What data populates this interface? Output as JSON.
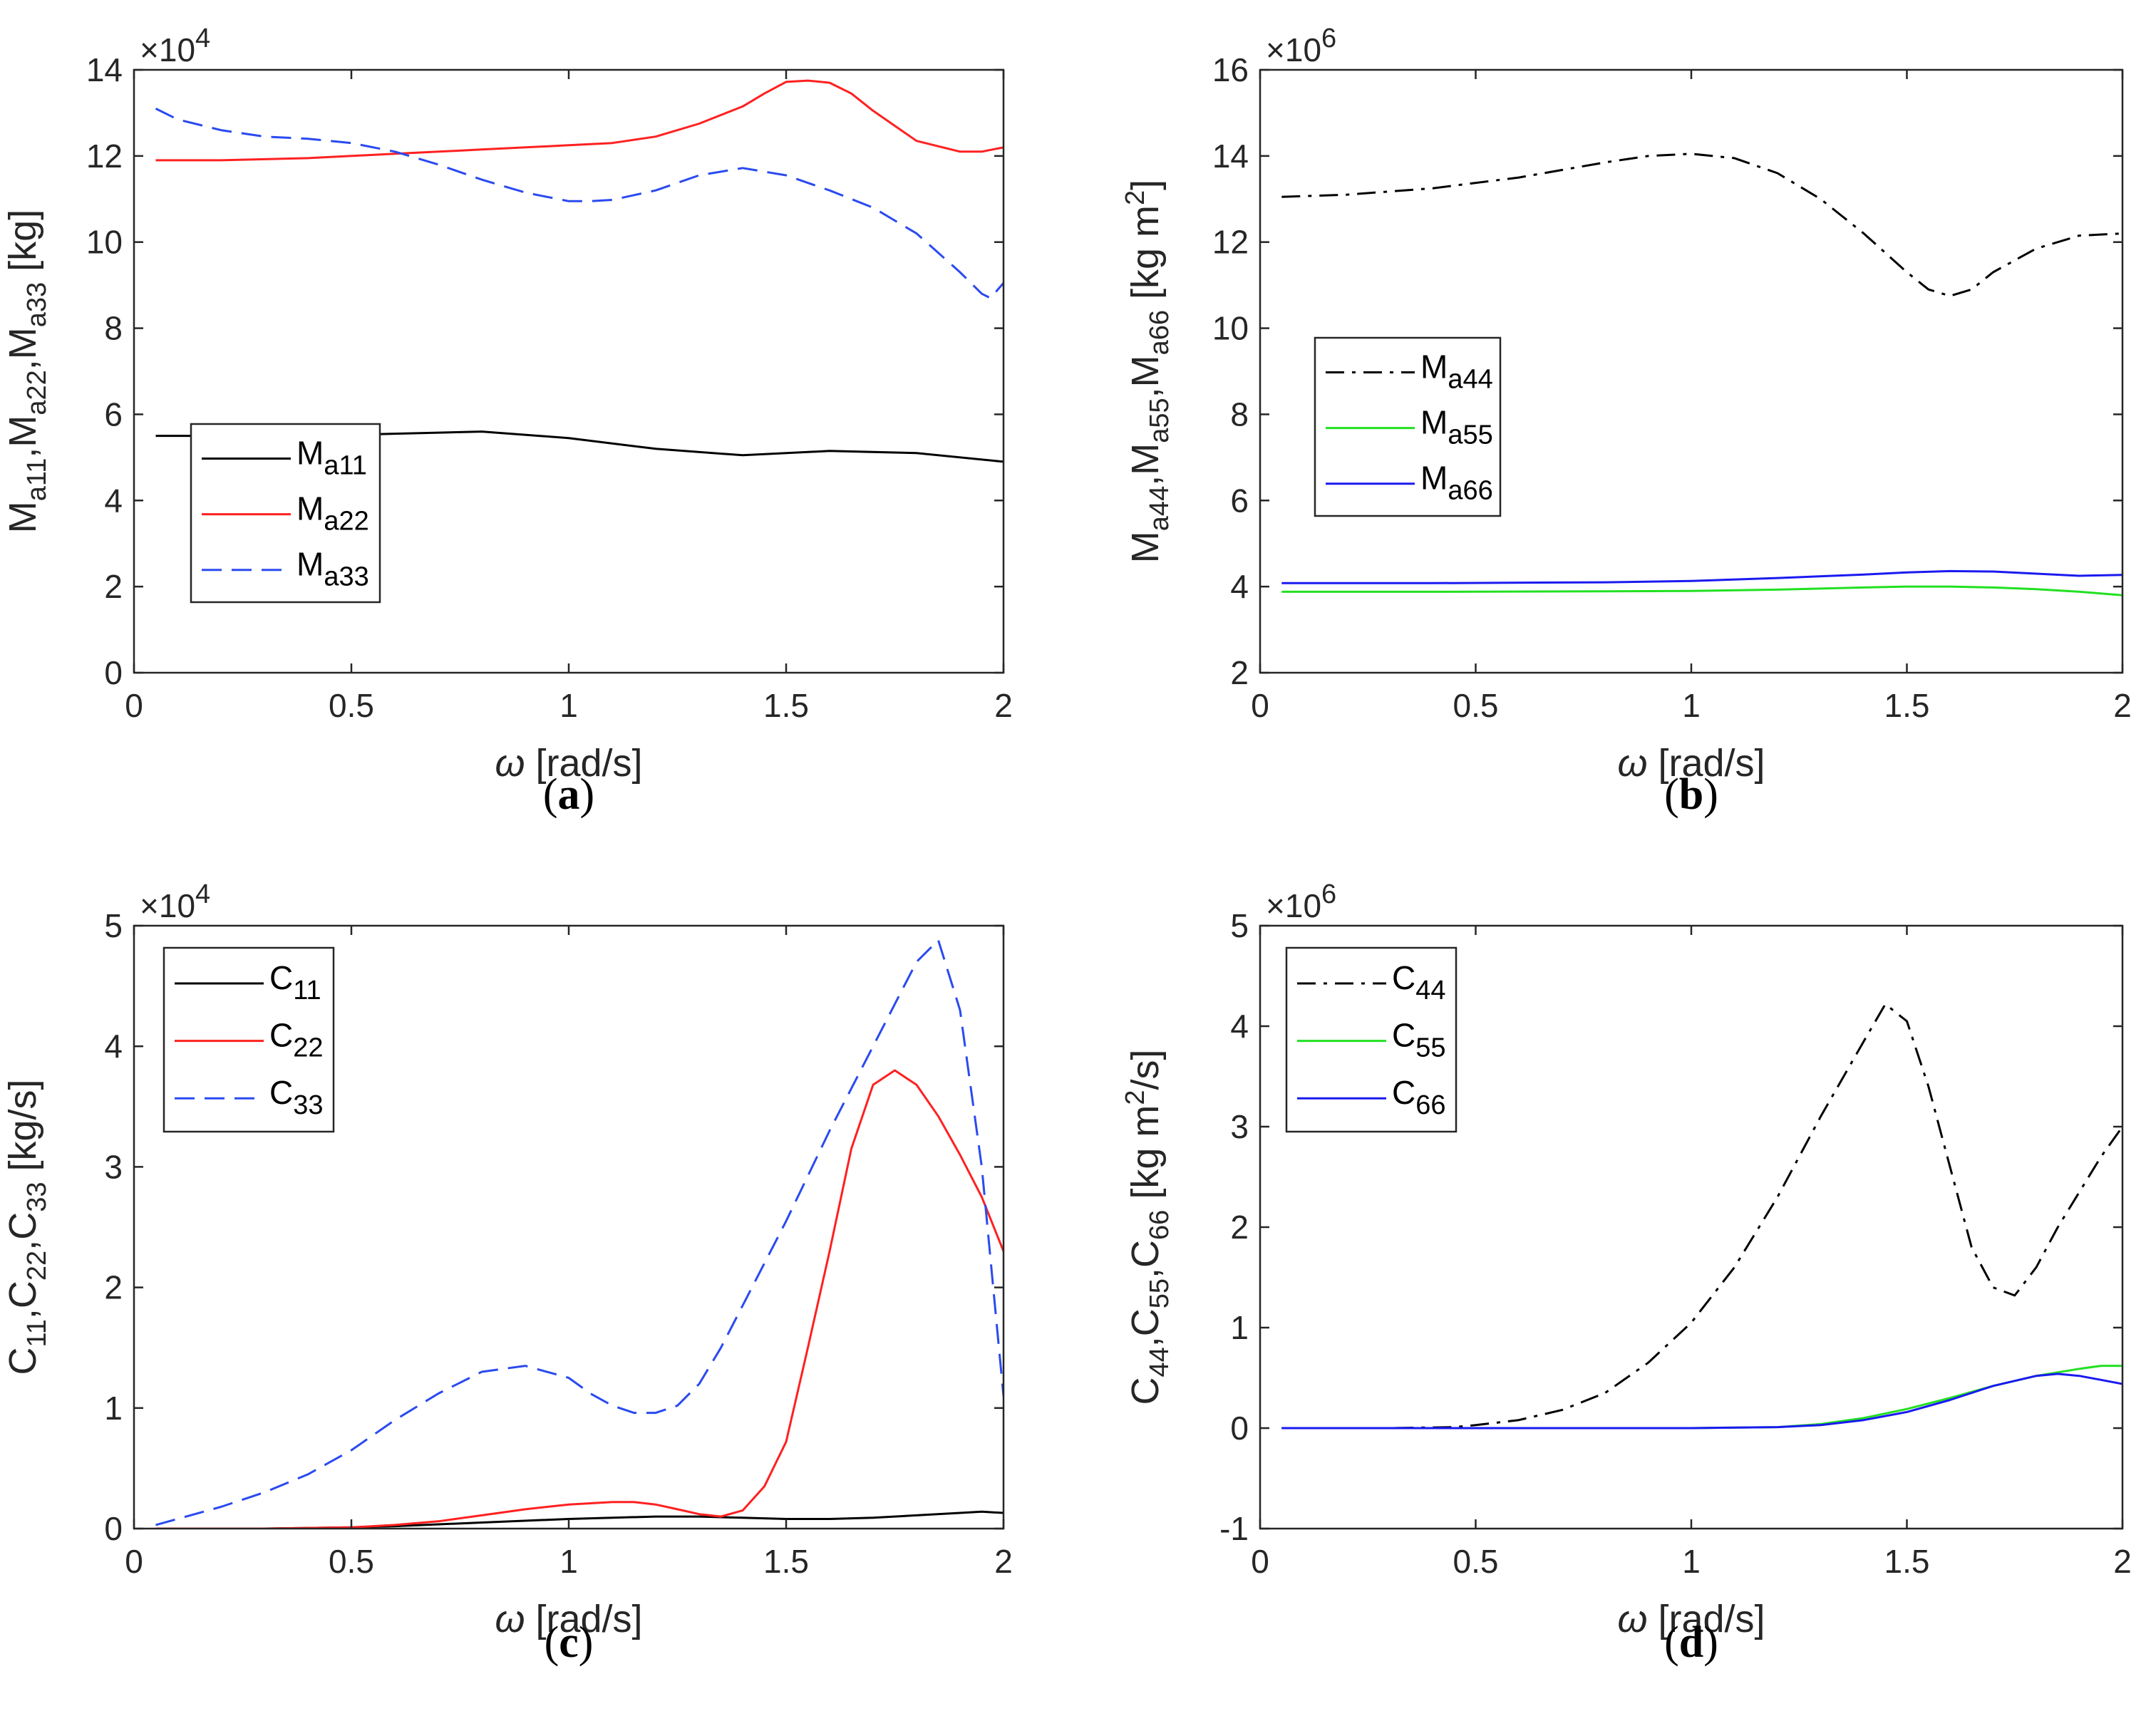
{
  "chart_data": [
    {
      "type": "line",
      "panel": "a",
      "panel_label": "a",
      "xlabel": "[rad/s]",
      "xlabel_symbol": "ω",
      "ylabel": "M_{a11},M_{a22},M_{a33} [kg]",
      "ylabel_parts": [
        "M",
        "a11",
        ",M",
        "a22",
        ",M",
        "a33",
        " [kg]"
      ],
      "exponent_label": "×10",
      "exponent": "4",
      "xlim": [
        0,
        2
      ],
      "ylim": [
        0,
        14
      ],
      "xticks": [
        0,
        0.5,
        1,
        1.5,
        2
      ],
      "xtick_labels": [
        "0",
        "0.5",
        "1",
        "1.5",
        "2"
      ],
      "yticks": [
        0,
        2,
        4,
        6,
        8,
        10,
        12,
        14
      ],
      "ytick_labels": [
        "0",
        "2",
        "4",
        "6",
        "8",
        "10",
        "12",
        "14"
      ],
      "legend_position": "lower-left",
      "series": [
        {
          "name": "M",
          "sub": "a11",
          "color": "#000000",
          "dash": "solid",
          "x": [
            0.05,
            0.2,
            0.4,
            0.6,
            0.8,
            1.0,
            1.2,
            1.4,
            1.6,
            1.8,
            2.0
          ],
          "y": [
            5.5,
            5.5,
            5.5,
            5.55,
            5.6,
            5.45,
            5.2,
            5.05,
            5.15,
            5.1,
            4.9
          ]
        },
        {
          "name": "M",
          "sub": "a22",
          "color": "#ff2020",
          "dash": "solid",
          "x": [
            0.05,
            0.2,
            0.4,
            0.6,
            0.8,
            1.0,
            1.1,
            1.2,
            1.3,
            1.4,
            1.45,
            1.5,
            1.55,
            1.6,
            1.65,
            1.7,
            1.8,
            1.9,
            1.95,
            2.0
          ],
          "y": [
            11.9,
            11.9,
            11.95,
            12.05,
            12.15,
            12.25,
            12.3,
            12.45,
            12.75,
            13.15,
            13.45,
            13.72,
            13.75,
            13.7,
            13.45,
            13.05,
            12.35,
            12.1,
            12.1,
            12.2
          ]
        },
        {
          "name": "M",
          "sub": "a33",
          "color": "#2a4af0",
          "dash": "dash",
          "x": [
            0.05,
            0.1,
            0.2,
            0.3,
            0.4,
            0.5,
            0.6,
            0.7,
            0.8,
            0.9,
            1.0,
            1.05,
            1.1,
            1.2,
            1.3,
            1.4,
            1.5,
            1.6,
            1.7,
            1.8,
            1.85,
            1.9,
            1.95,
            1.97,
            2.0
          ],
          "y": [
            13.1,
            12.85,
            12.6,
            12.45,
            12.4,
            12.3,
            12.1,
            11.8,
            11.45,
            11.15,
            10.95,
            10.95,
            10.98,
            11.2,
            11.55,
            11.72,
            11.55,
            11.2,
            10.8,
            10.2,
            9.75,
            9.3,
            8.8,
            8.7,
            9.05
          ]
        }
      ]
    },
    {
      "type": "line",
      "panel": "b",
      "panel_label": "b",
      "xlabel": "[rad/s]",
      "xlabel_symbol": "ω",
      "ylabel": "M_{a44},M_{a55},M_{a66} [kg m^2]",
      "ylabel_parts": [
        "M",
        "a44",
        ",M",
        "a55",
        ",M",
        "a66",
        " [kg m",
        "2",
        "]"
      ],
      "exponent_label": "×10",
      "exponent": "6",
      "xlim": [
        0,
        2
      ],
      "ylim": [
        2,
        16
      ],
      "xticks": [
        0,
        0.5,
        1,
        1.5,
        2
      ],
      "xtick_labels": [
        "0",
        "0.5",
        "1",
        "1.5",
        "2"
      ],
      "yticks": [
        2,
        4,
        6,
        8,
        10,
        12,
        14,
        16
      ],
      "ytick_labels": [
        "2",
        "4",
        "6",
        "8",
        "10",
        "12",
        "14",
        "16"
      ],
      "legend_position": "middle-left",
      "series": [
        {
          "name": "M",
          "sub": "a44",
          "color": "#000000",
          "dash": "dashdot",
          "x": [
            0.05,
            0.2,
            0.4,
            0.6,
            0.8,
            0.9,
            1.0,
            1.1,
            1.2,
            1.3,
            1.4,
            1.5,
            1.55,
            1.6,
            1.65,
            1.7,
            1.8,
            1.9,
            2.0
          ],
          "y": [
            13.05,
            13.1,
            13.25,
            13.5,
            13.85,
            14.0,
            14.05,
            13.95,
            13.6,
            13.0,
            12.2,
            11.3,
            10.9,
            10.75,
            10.9,
            11.3,
            11.85,
            12.15,
            12.2
          ]
        },
        {
          "name": "M",
          "sub": "a55",
          "color": "#22e022",
          "dash": "solid",
          "x": [
            0.05,
            0.4,
            0.8,
            1.0,
            1.2,
            1.4,
            1.5,
            1.6,
            1.7,
            1.8,
            1.9,
            2.0
          ],
          "y": [
            3.88,
            3.88,
            3.89,
            3.9,
            3.93,
            3.98,
            4.0,
            4.0,
            3.98,
            3.94,
            3.88,
            3.8
          ]
        },
        {
          "name": "M",
          "sub": "a66",
          "color": "#1a1af0",
          "dash": "solid",
          "x": [
            0.05,
            0.4,
            0.8,
            1.0,
            1.2,
            1.4,
            1.5,
            1.6,
            1.7,
            1.8,
            1.9,
            2.0
          ],
          "y": [
            4.08,
            4.08,
            4.1,
            4.13,
            4.2,
            4.28,
            4.33,
            4.36,
            4.35,
            4.3,
            4.25,
            4.27
          ]
        }
      ]
    },
    {
      "type": "line",
      "panel": "c",
      "panel_label": "c",
      "xlabel": "[rad/s]",
      "xlabel_symbol": "ω",
      "ylabel": "C_{11},C_{22},C_{33} [kg/s]",
      "ylabel_parts": [
        "C",
        "11",
        ",C",
        "22",
        ",C",
        "33",
        " [kg/s]"
      ],
      "exponent_label": "×10",
      "exponent": "4",
      "xlim": [
        0,
        2
      ],
      "ylim": [
        0,
        5
      ],
      "xticks": [
        0,
        0.5,
        1,
        1.5,
        2
      ],
      "xtick_labels": [
        "0",
        "0.5",
        "1",
        "1.5",
        "2"
      ],
      "yticks": [
        0,
        1,
        2,
        3,
        4,
        5
      ],
      "ytick_labels": [
        "0",
        "1",
        "2",
        "3",
        "4",
        "5"
      ],
      "legend_position": "top-left",
      "series": [
        {
          "name": "C",
          "sub": "11",
          "color": "#000000",
          "dash": "solid",
          "x": [
            0.05,
            0.3,
            0.5,
            0.6,
            0.8,
            1.0,
            1.2,
            1.3,
            1.4,
            1.5,
            1.6,
            1.7,
            1.8,
            1.9,
            1.95,
            2.0
          ],
          "y": [
            0.0,
            0.0,
            0.01,
            0.02,
            0.05,
            0.08,
            0.1,
            0.1,
            0.09,
            0.08,
            0.08,
            0.09,
            0.11,
            0.13,
            0.14,
            0.13
          ]
        },
        {
          "name": "C",
          "sub": "22",
          "color": "#ff2020",
          "dash": "solid",
          "x": [
            0.05,
            0.3,
            0.5,
            0.6,
            0.7,
            0.8,
            0.9,
            1.0,
            1.1,
            1.15,
            1.2,
            1.25,
            1.3,
            1.35,
            1.4,
            1.45,
            1.5,
            1.55,
            1.6,
            1.65,
            1.7,
            1.75,
            1.8,
            1.85,
            1.9,
            1.95,
            2.0
          ],
          "y": [
            0.0,
            0.0,
            0.01,
            0.03,
            0.06,
            0.11,
            0.16,
            0.2,
            0.22,
            0.22,
            0.2,
            0.16,
            0.12,
            0.1,
            0.15,
            0.35,
            0.72,
            1.5,
            2.3,
            3.15,
            3.68,
            3.8,
            3.68,
            3.42,
            3.1,
            2.75,
            2.3
          ]
        },
        {
          "name": "C",
          "sub": "33",
          "color": "#2a4af0",
          "dash": "dash",
          "x": [
            0.05,
            0.1,
            0.2,
            0.3,
            0.4,
            0.5,
            0.6,
            0.7,
            0.8,
            0.9,
            1.0,
            1.05,
            1.1,
            1.15,
            1.2,
            1.25,
            1.3,
            1.35,
            1.4,
            1.5,
            1.6,
            1.7,
            1.8,
            1.85,
            1.9,
            1.95,
            2.0
          ],
          "y": [
            0.03,
            0.08,
            0.18,
            0.3,
            0.45,
            0.65,
            0.9,
            1.12,
            1.3,
            1.35,
            1.25,
            1.12,
            1.02,
            0.96,
            0.96,
            1.02,
            1.2,
            1.5,
            1.85,
            2.55,
            3.3,
            4.0,
            4.7,
            4.88,
            4.3,
            3.0,
            1.1
          ]
        }
      ]
    },
    {
      "type": "line",
      "panel": "d",
      "panel_label": "d",
      "xlabel": "[rad/s]",
      "xlabel_symbol": "ω",
      "ylabel": "C_{44},C_{55},C_{66} [kg m^2/s]",
      "ylabel_parts": [
        "C",
        "44",
        ",C",
        "55",
        ",C",
        "66",
        " [kg m",
        "2",
        "/s]"
      ],
      "exponent_label": "×10",
      "exponent": "6",
      "xlim": [
        0,
        2
      ],
      "ylim": [
        -1,
        5
      ],
      "xticks": [
        0,
        0.5,
        1,
        1.5,
        2
      ],
      "xtick_labels": [
        "0",
        "0.5",
        "1",
        "1.5",
        "2"
      ],
      "yticks": [
        -1,
        0,
        1,
        2,
        3,
        4,
        5
      ],
      "ytick_labels": [
        "-1",
        "0",
        "1",
        "2",
        "3",
        "4",
        "5"
      ],
      "legend_position": "top-left",
      "series": [
        {
          "name": "C",
          "sub": "44",
          "color": "#000000",
          "dash": "dashdot",
          "x": [
            0.05,
            0.3,
            0.45,
            0.5,
            0.6,
            0.7,
            0.8,
            0.9,
            1.0,
            1.1,
            1.2,
            1.3,
            1.4,
            1.45,
            1.5,
            1.55,
            1.6,
            1.65,
            1.7,
            1.75,
            1.8,
            1.85,
            1.9,
            1.95,
            2.0
          ],
          "y": [
            0.0,
            0.0,
            0.01,
            0.03,
            0.08,
            0.18,
            0.35,
            0.65,
            1.05,
            1.6,
            2.3,
            3.1,
            3.85,
            4.22,
            4.05,
            3.4,
            2.6,
            1.8,
            1.4,
            1.32,
            1.6,
            2.0,
            2.35,
            2.7,
            3.0
          ]
        },
        {
          "name": "C",
          "sub": "55",
          "color": "#22e022",
          "dash": "solid",
          "x": [
            0.05,
            0.5,
            1.0,
            1.2,
            1.3,
            1.4,
            1.5,
            1.6,
            1.7,
            1.8,
            1.9,
            1.95,
            2.0
          ],
          "y": [
            0.0,
            0.0,
            0.0,
            0.01,
            0.04,
            0.1,
            0.19,
            0.3,
            0.42,
            0.52,
            0.59,
            0.62,
            0.62
          ]
        },
        {
          "name": "C",
          "sub": "66",
          "color": "#1a1af0",
          "dash": "solid",
          "x": [
            0.05,
            0.5,
            1.0,
            1.2,
            1.3,
            1.4,
            1.5,
            1.6,
            1.7,
            1.8,
            1.85,
            1.9,
            1.95,
            2.0
          ],
          "y": [
            0.0,
            0.0,
            0.0,
            0.01,
            0.03,
            0.08,
            0.16,
            0.28,
            0.42,
            0.52,
            0.54,
            0.52,
            0.48,
            0.44
          ]
        }
      ]
    }
  ]
}
